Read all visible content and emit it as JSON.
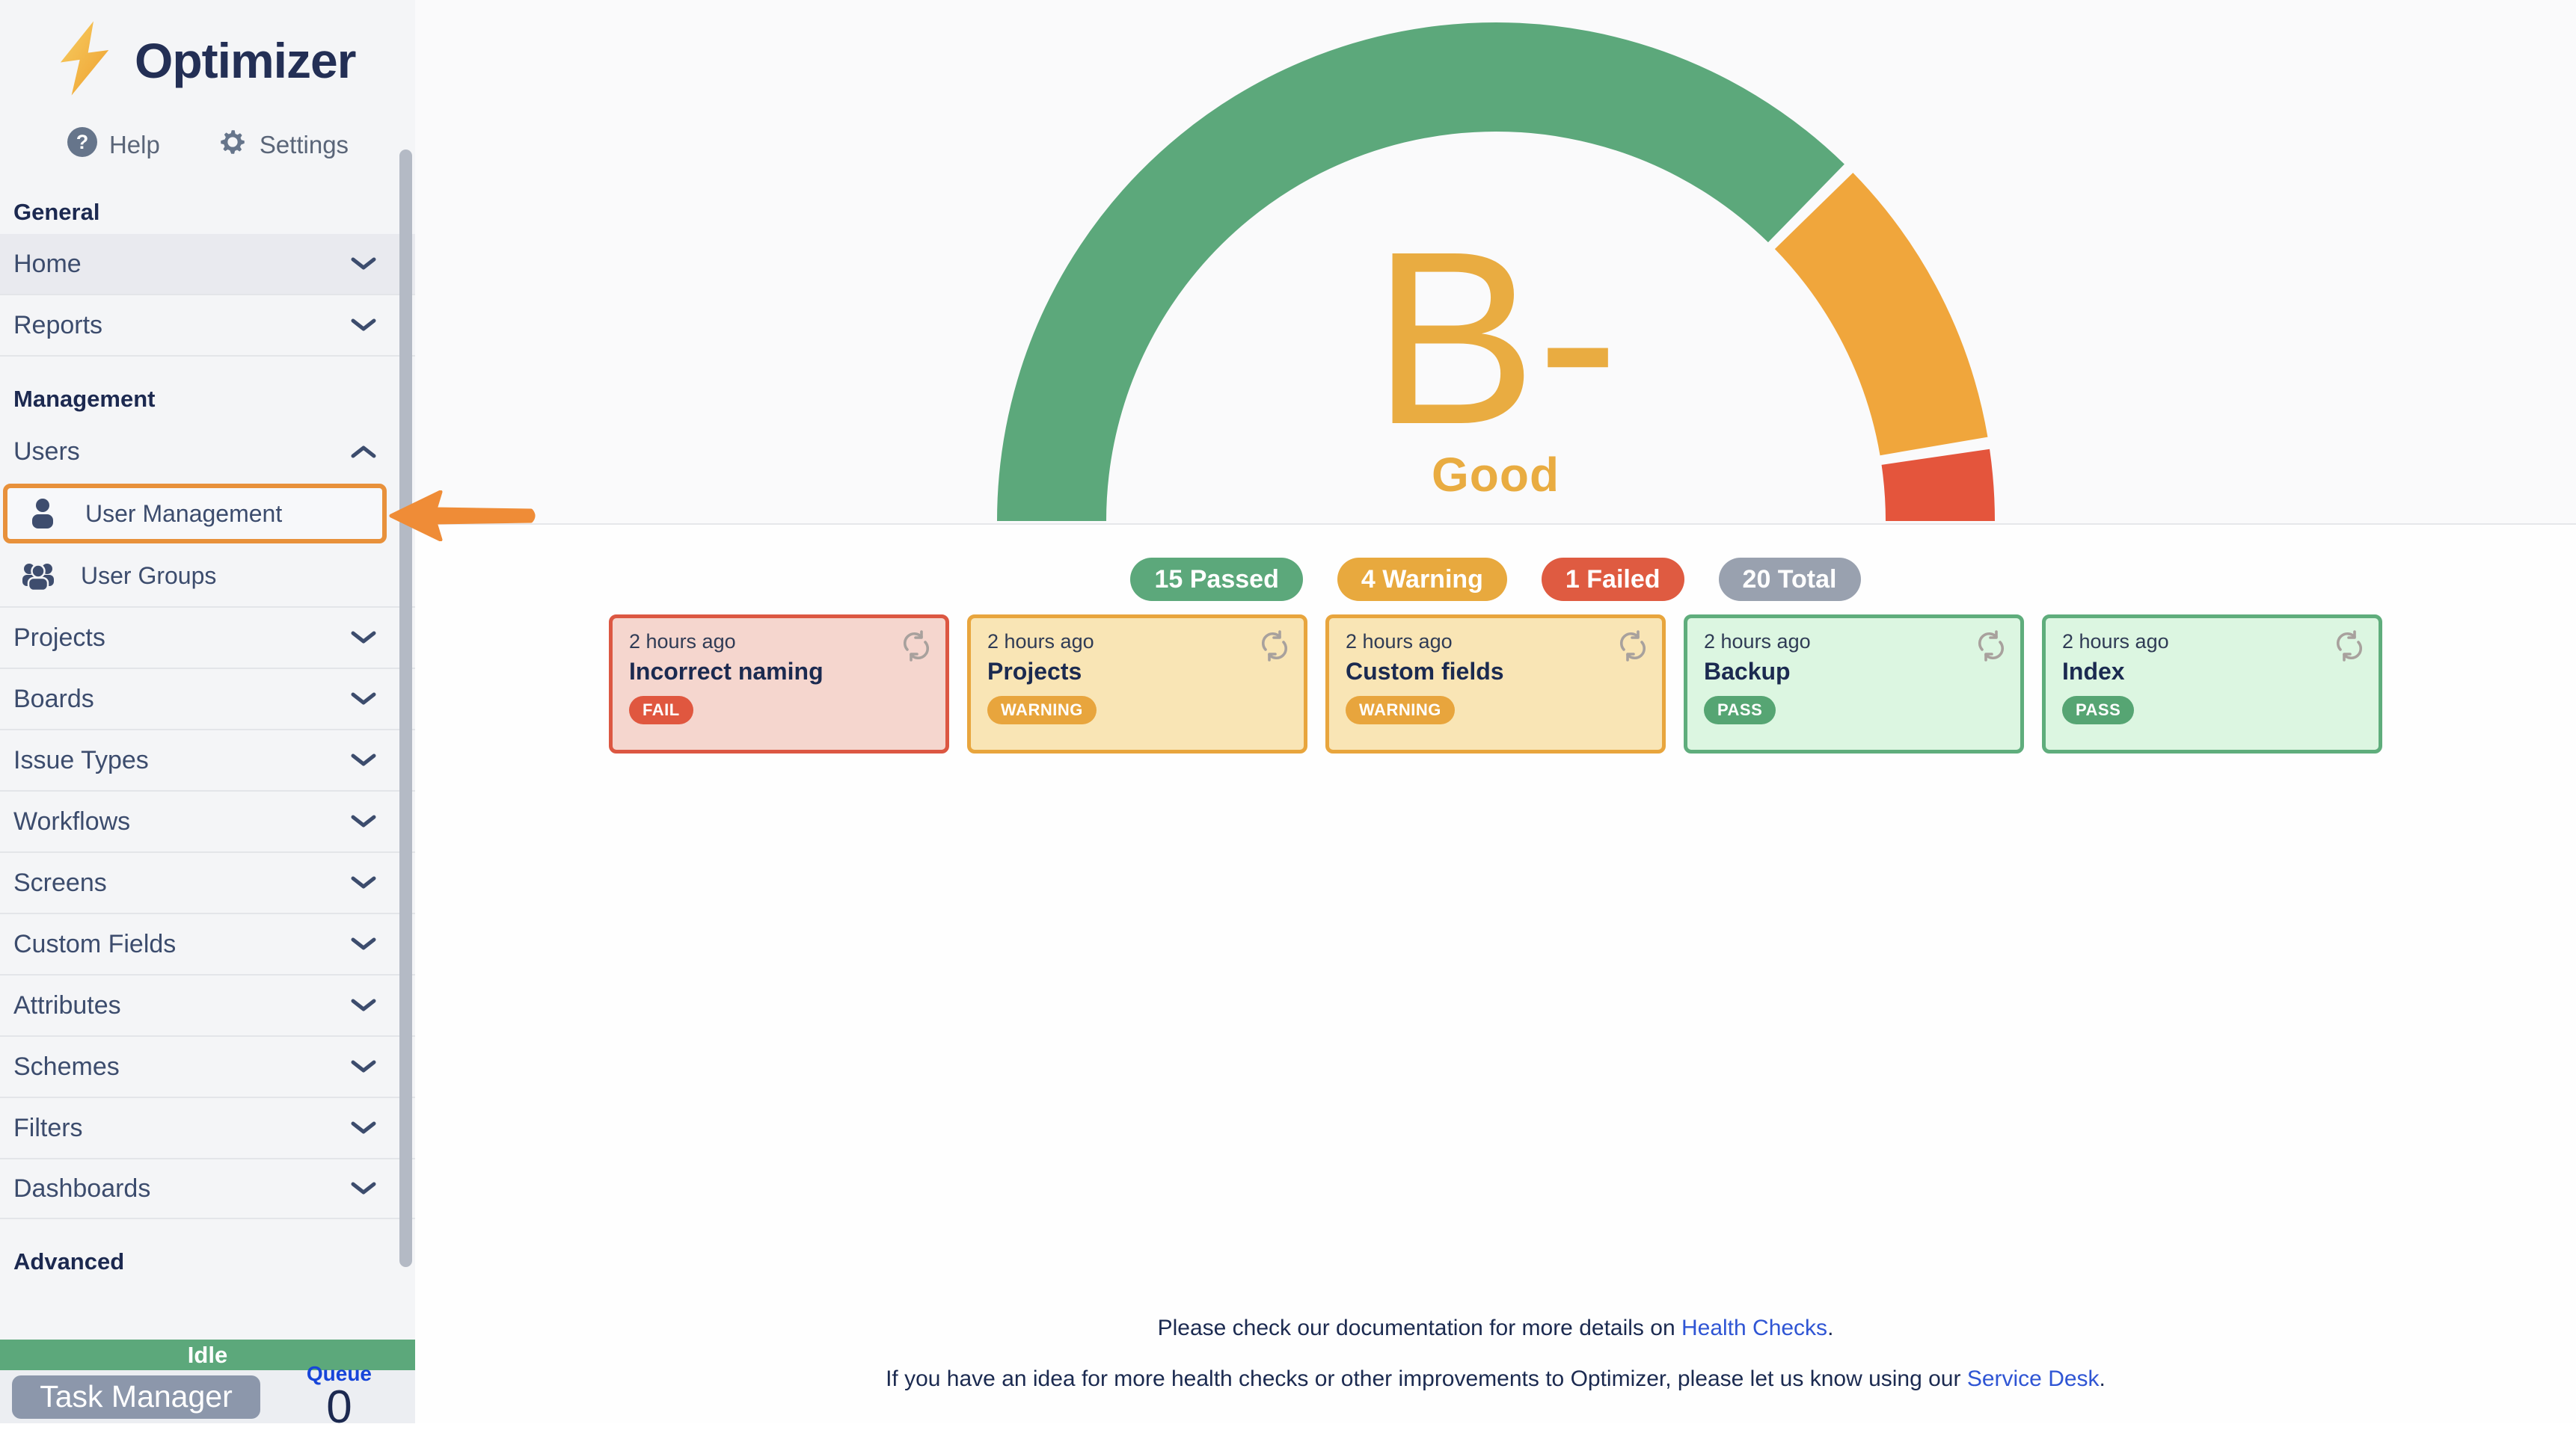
{
  "app": {
    "title": "Optimizer"
  },
  "quick_links": {
    "help": "Help",
    "settings": "Settings"
  },
  "sidebar": {
    "heading_general": "General",
    "heading_management": "Management",
    "heading_advanced": "Advanced",
    "items": {
      "home": "Home",
      "reports": "Reports",
      "users": "Users",
      "user_management": "User Management",
      "user_groups": "User Groups",
      "projects": "Projects",
      "boards": "Boards",
      "issue_types": "Issue Types",
      "workflows": "Workflows",
      "screens": "Screens",
      "custom_fields": "Custom Fields",
      "attributes": "Attributes",
      "schemes": "Schemes",
      "filters": "Filters",
      "dashboards": "Dashboards"
    }
  },
  "status_panel": {
    "state": "Idle",
    "task_manager_label": "Task Manager",
    "queue_label": "Queue",
    "queue_value": "0"
  },
  "chart_data": {
    "type": "gauge",
    "title": "B-",
    "subtitle": "Good",
    "total": 20,
    "span_degrees": 180,
    "segments": [
      {
        "label": "Passed",
        "value": 15,
        "color": "#5CA87B"
      },
      {
        "label": "Warning",
        "value": 4,
        "color": "#F0A63C"
      },
      {
        "label": "Failed",
        "value": 1,
        "color": "#E4553C"
      }
    ]
  },
  "summary": {
    "passed": "15 Passed",
    "warning": "4 Warning",
    "failed": "1 Failed",
    "total": "20 Total"
  },
  "cards": [
    {
      "time": "2 hours ago",
      "title": "Incorrect naming",
      "status": "FAIL"
    },
    {
      "time": "2 hours ago",
      "title": "Projects",
      "status": "WARNING"
    },
    {
      "time": "2 hours ago",
      "title": "Custom fields",
      "status": "WARNING"
    },
    {
      "time": "2 hours ago",
      "title": "Backup",
      "status": "PASS"
    },
    {
      "time": "2 hours ago",
      "title": "Index",
      "status": "PASS"
    }
  ],
  "footer": {
    "line1_prefix": "Please check our documentation for more details on ",
    "line1_link": "Health Checks",
    "line1_suffix": ".",
    "line2_prefix": "If you have an idea for more health checks or other improvements to Optimizer, please let us know using our ",
    "line2_link": "Service Desk",
    "line2_suffix": "."
  },
  "colors": {
    "passed_green": "#5CA87B",
    "warning_amber": "#E8A93E",
    "failed_red": "#DF5B41",
    "total_gray": "#99A1AF",
    "grade_amber": "#E9AC41",
    "highlight_orange": "#E8913B",
    "link_blue": "#2F55D4",
    "navy_text": "#1C2950"
  }
}
